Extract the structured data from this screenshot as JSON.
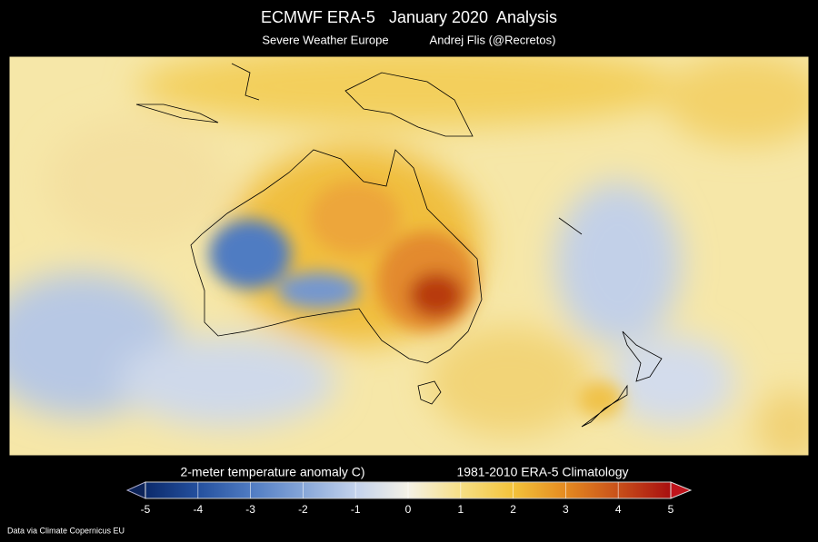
{
  "title": "ECMWF ERA-5   January 2020  Analysis",
  "subtitle_left": "Severe Weather Europe",
  "subtitle_right": "Andrej Flis (@Recretos)",
  "colorbar": {
    "label": "2-meter temperature anomaly C)",
    "label_right": "1981-2010 ERA-5 Climatology",
    "range": [
      -5,
      5
    ],
    "ticks": [
      -5,
      -4,
      -3,
      -2,
      -1,
      0,
      1,
      2,
      3,
      4,
      5
    ],
    "colors": [
      "#0b2a6b",
      "#24509e",
      "#4f7bc2",
      "#86a6d8",
      "#c3d2ec",
      "#f4f1e6",
      "#f6df86",
      "#f3c33b",
      "#e58a20",
      "#c8501a",
      "#a80f10"
    ]
  },
  "credit": "Data via Climate Copernicus EU"
}
